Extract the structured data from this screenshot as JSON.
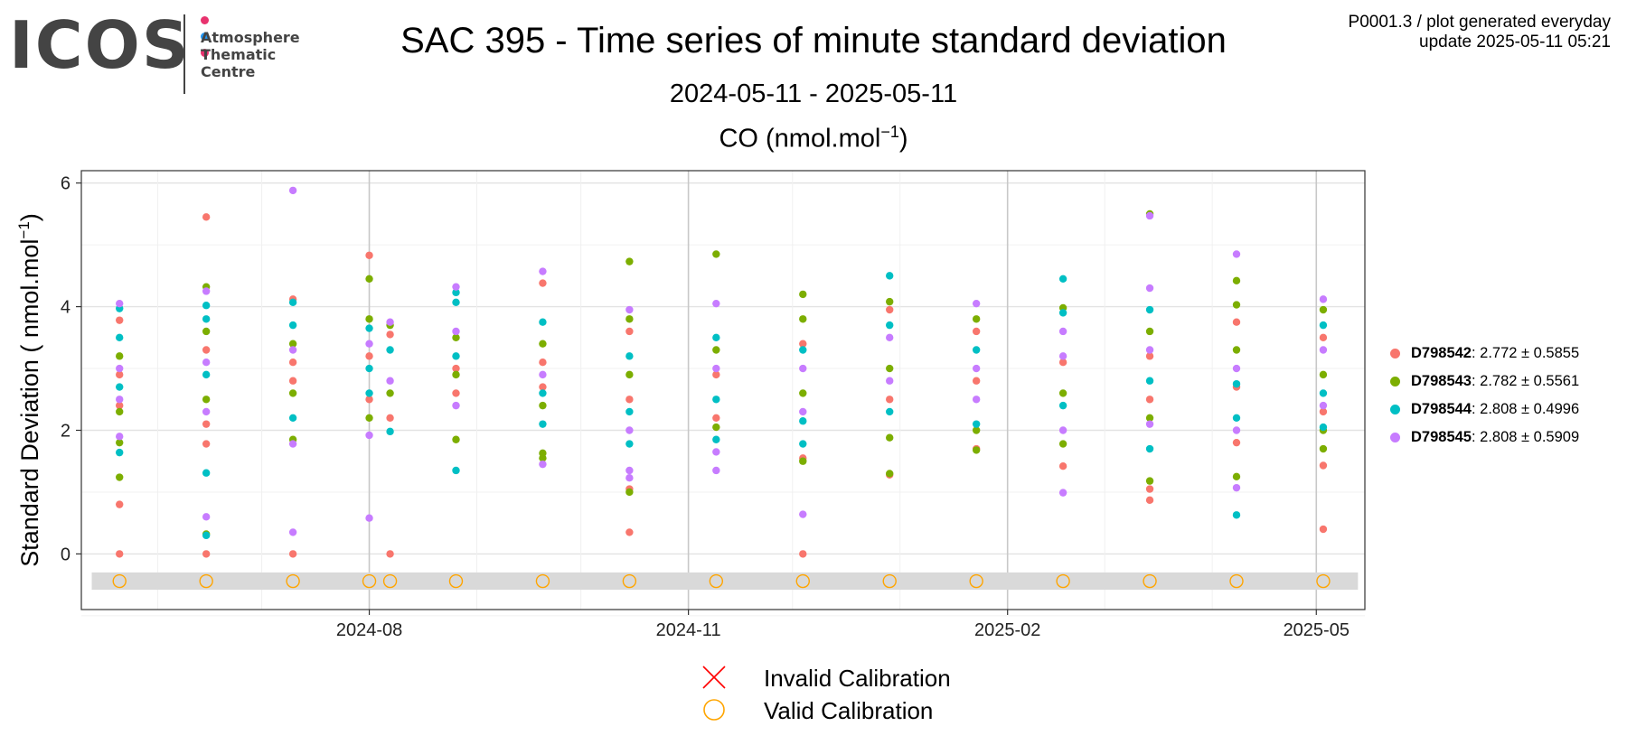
{
  "header": {
    "logo": {
      "word": "ICOS",
      "line1": "Atmosphere",
      "line2": "Thematic",
      "line3": "Centre",
      "dot_colors": [
        "#e8326e",
        "#2196f3",
        "#e8326e"
      ]
    },
    "title": "SAC 395 - Time series of minute standard deviation",
    "subtitle": "2024-05-11 - 2025-05-11",
    "panel_title_main": "CO (nmol.mol",
    "panel_title_sup": "−1",
    "panel_title_end": ")",
    "meta_line1": "P0001.3 / plot generated everyday",
    "meta_line2": "update  2025-05-11 05:21"
  },
  "legend": {
    "items": [
      {
        "name": "D798542",
        "stat": ": 2.772 ± 0.5855",
        "color": "#f8766d"
      },
      {
        "name": "D798543",
        "stat": ": 2.782 ± 0.5561",
        "color": "#7cae00"
      },
      {
        "name": "D798544",
        "stat": ": 2.808 ± 0.4996",
        "color": "#00bfc4"
      },
      {
        "name": "D798545",
        "stat": ": 2.808 ± 0.5909",
        "color": "#c77cff"
      }
    ]
  },
  "calibration_legend": {
    "invalid_label": "Invalid Calibration",
    "valid_label": "Valid Calibration",
    "invalid_color": "#ff0000",
    "valid_color": "#ffa500"
  },
  "chart_data": {
    "type": "scatter",
    "title": "CO (nmol.mol⁻¹)",
    "ylabel_main": "Standard Deviation ( nmol.mol",
    "ylabel_sup": "−1",
    "ylabel_end": ")",
    "xlabel": "",
    "x_axis": "date",
    "xlim": [
      "2024-05-10",
      "2025-05-15"
    ],
    "ylim": [
      -0.9,
      6.2
    ],
    "yticks": [
      0,
      2,
      4,
      6
    ],
    "xticks": [
      {
        "date": "2024-08-01",
        "label": "2024-08"
      },
      {
        "date": "2024-11-01",
        "label": "2024-11"
      },
      {
        "date": "2025-02-01",
        "label": "2025-02"
      },
      {
        "date": "2025-05-01",
        "label": "2025-05"
      }
    ],
    "grid": true,
    "legend_position": "right",
    "calibration_band": [
      -0.58,
      -0.3
    ],
    "valid_calibrations": [
      "2024-05-21",
      "2024-06-15",
      "2024-07-10",
      "2024-08-01",
      "2024-08-07",
      "2024-08-26",
      "2024-09-20",
      "2024-10-15",
      "2024-11-09",
      "2024-12-04",
      "2024-12-29",
      "2025-01-23",
      "2025-02-17",
      "2025-03-14",
      "2025-04-08",
      "2025-05-03"
    ],
    "invalid_calibrations": [],
    "series": [
      {
        "name": "D798542",
        "color": "#f8766d",
        "points": [
          [
            "2024-05-21",
            0.0
          ],
          [
            "2024-05-21",
            0.8
          ],
          [
            "2024-05-21",
            3.78
          ],
          [
            "2024-05-21",
            2.4
          ],
          [
            "2024-05-21",
            2.9
          ],
          [
            "2024-06-15",
            0.0
          ],
          [
            "2024-06-15",
            1.78
          ],
          [
            "2024-06-15",
            5.45
          ],
          [
            "2024-06-15",
            2.1
          ],
          [
            "2024-06-15",
            3.3
          ],
          [
            "2024-07-10",
            0.0
          ],
          [
            "2024-07-10",
            4.12
          ],
          [
            "2024-07-10",
            2.8
          ],
          [
            "2024-07-10",
            3.1
          ],
          [
            "2024-08-01",
            4.83
          ],
          [
            "2024-08-01",
            2.5
          ],
          [
            "2024-08-01",
            3.2
          ],
          [
            "2024-08-07",
            0.0
          ],
          [
            "2024-08-07",
            3.55
          ],
          [
            "2024-08-07",
            2.2
          ],
          [
            "2024-08-26",
            2.6
          ],
          [
            "2024-08-26",
            3.0
          ],
          [
            "2024-09-20",
            4.38
          ],
          [
            "2024-09-20",
            3.1
          ],
          [
            "2024-09-20",
            2.7
          ],
          [
            "2024-10-15",
            0.35
          ],
          [
            "2024-10-15",
            1.05
          ],
          [
            "2024-10-15",
            3.6
          ],
          [
            "2024-10-15",
            2.5
          ],
          [
            "2024-11-09",
            2.9
          ],
          [
            "2024-11-09",
            2.2
          ],
          [
            "2024-12-04",
            0.0
          ],
          [
            "2024-12-04",
            1.55
          ],
          [
            "2024-12-04",
            3.4
          ],
          [
            "2024-12-29",
            1.28
          ],
          [
            "2024-12-29",
            3.95
          ],
          [
            "2024-12-29",
            2.5
          ],
          [
            "2025-01-23",
            1.7
          ],
          [
            "2025-01-23",
            3.6
          ],
          [
            "2025-01-23",
            2.8
          ],
          [
            "2025-02-17",
            1.42
          ],
          [
            "2025-02-17",
            3.1
          ],
          [
            "2025-03-14",
            0.87
          ],
          [
            "2025-03-14",
            1.05
          ],
          [
            "2025-03-14",
            3.2
          ],
          [
            "2025-03-14",
            2.5
          ],
          [
            "2025-04-08",
            1.8
          ],
          [
            "2025-04-08",
            3.75
          ],
          [
            "2025-04-08",
            2.7
          ],
          [
            "2025-05-03",
            0.4
          ],
          [
            "2025-05-03",
            1.43
          ],
          [
            "2025-05-03",
            3.5
          ],
          [
            "2025-05-03",
            2.3
          ]
        ]
      },
      {
        "name": "D798543",
        "color": "#7cae00",
        "points": [
          [
            "2024-05-21",
            1.24
          ],
          [
            "2024-05-21",
            1.8
          ],
          [
            "2024-05-21",
            2.3
          ],
          [
            "2024-05-21",
            3.2
          ],
          [
            "2024-06-15",
            0.32
          ],
          [
            "2024-06-15",
            4.32
          ],
          [
            "2024-06-15",
            2.5
          ],
          [
            "2024-06-15",
            3.6
          ],
          [
            "2024-07-10",
            1.85
          ],
          [
            "2024-07-10",
            2.6
          ],
          [
            "2024-07-10",
            3.4
          ],
          [
            "2024-08-01",
            4.45
          ],
          [
            "2024-08-01",
            3.8
          ],
          [
            "2024-08-01",
            2.2
          ],
          [
            "2024-08-07",
            3.7
          ],
          [
            "2024-08-07",
            2.6
          ],
          [
            "2024-08-26",
            1.85
          ],
          [
            "2024-08-26",
            3.5
          ],
          [
            "2024-08-26",
            2.9
          ],
          [
            "2024-09-20",
            1.55
          ],
          [
            "2024-09-20",
            1.63
          ],
          [
            "2024-09-20",
            3.4
          ],
          [
            "2024-09-20",
            2.4
          ],
          [
            "2024-10-15",
            1.0
          ],
          [
            "2024-10-15",
            4.73
          ],
          [
            "2024-10-15",
            3.8
          ],
          [
            "2024-10-15",
            2.9
          ],
          [
            "2024-11-09",
            4.85
          ],
          [
            "2024-11-09",
            2.05
          ],
          [
            "2024-11-09",
            3.3
          ],
          [
            "2024-12-04",
            1.5
          ],
          [
            "2024-12-04",
            4.2
          ],
          [
            "2024-12-04",
            3.8
          ],
          [
            "2024-12-04",
            2.6
          ],
          [
            "2024-12-29",
            1.3
          ],
          [
            "2024-12-29",
            1.88
          ],
          [
            "2024-12-29",
            4.08
          ],
          [
            "2024-12-29",
            3.0
          ],
          [
            "2025-01-23",
            1.68
          ],
          [
            "2025-01-23",
            2.0
          ],
          [
            "2025-01-23",
            3.8
          ],
          [
            "2025-02-17",
            1.78
          ],
          [
            "2025-02-17",
            3.98
          ],
          [
            "2025-02-17",
            2.6
          ],
          [
            "2025-03-14",
            1.18
          ],
          [
            "2025-03-14",
            5.5
          ],
          [
            "2025-03-14",
            2.2
          ],
          [
            "2025-03-14",
            3.6
          ],
          [
            "2025-04-08",
            1.25
          ],
          [
            "2025-04-08",
            4.42
          ],
          [
            "2025-04-08",
            4.03
          ],
          [
            "2025-04-08",
            3.3
          ],
          [
            "2025-05-03",
            1.7
          ],
          [
            "2025-05-03",
            3.95
          ],
          [
            "2025-05-03",
            2.0
          ],
          [
            "2025-05-03",
            2.9
          ]
        ]
      },
      {
        "name": "D798544",
        "color": "#00bfc4",
        "points": [
          [
            "2024-05-21",
            1.64
          ],
          [
            "2024-05-21",
            3.97
          ],
          [
            "2024-05-21",
            2.7
          ],
          [
            "2024-05-21",
            3.5
          ],
          [
            "2024-06-15",
            0.3
          ],
          [
            "2024-06-15",
            1.31
          ],
          [
            "2024-06-15",
            4.02
          ],
          [
            "2024-06-15",
            3.8
          ],
          [
            "2024-06-15",
            2.9
          ],
          [
            "2024-07-10",
            4.07
          ],
          [
            "2024-07-10",
            3.7
          ],
          [
            "2024-07-10",
            2.2
          ],
          [
            "2024-08-01",
            3.65
          ],
          [
            "2024-08-01",
            2.6
          ],
          [
            "2024-08-01",
            3.0
          ],
          [
            "2024-08-07",
            1.98
          ],
          [
            "2024-08-07",
            3.3
          ],
          [
            "2024-08-26",
            1.35
          ],
          [
            "2024-08-26",
            4.07
          ],
          [
            "2024-08-26",
            4.23
          ],
          [
            "2024-08-26",
            3.2
          ],
          [
            "2024-09-20",
            2.1
          ],
          [
            "2024-09-20",
            3.75
          ],
          [
            "2024-09-20",
            2.6
          ],
          [
            "2024-10-15",
            1.78
          ],
          [
            "2024-10-15",
            2.3
          ],
          [
            "2024-10-15",
            3.2
          ],
          [
            "2024-11-09",
            1.85
          ],
          [
            "2024-11-09",
            3.5
          ],
          [
            "2024-11-09",
            2.5
          ],
          [
            "2024-12-04",
            1.78
          ],
          [
            "2024-12-04",
            2.15
          ],
          [
            "2024-12-04",
            3.3
          ],
          [
            "2024-12-29",
            4.5
          ],
          [
            "2024-12-29",
            3.7
          ],
          [
            "2024-12-29",
            2.3
          ],
          [
            "2025-01-23",
            2.1
          ],
          [
            "2025-01-23",
            3.3
          ],
          [
            "2025-02-17",
            4.45
          ],
          [
            "2025-02-17",
            3.9
          ],
          [
            "2025-02-17",
            2.4
          ],
          [
            "2025-03-14",
            1.7
          ],
          [
            "2025-03-14",
            3.95
          ],
          [
            "2025-03-14",
            2.8
          ],
          [
            "2025-04-08",
            0.63
          ],
          [
            "2025-04-08",
            2.75
          ],
          [
            "2025-04-08",
            2.2
          ],
          [
            "2025-05-03",
            2.05
          ],
          [
            "2025-05-03",
            3.7
          ],
          [
            "2025-05-03",
            2.6
          ]
        ]
      },
      {
        "name": "D798545",
        "color": "#c77cff",
        "points": [
          [
            "2024-05-21",
            4.05
          ],
          [
            "2024-05-21",
            1.9
          ],
          [
            "2024-05-21",
            3.0
          ],
          [
            "2024-05-21",
            2.5
          ],
          [
            "2024-06-15",
            0.6
          ],
          [
            "2024-06-15",
            4.25
          ],
          [
            "2024-06-15",
            2.3
          ],
          [
            "2024-06-15",
            3.1
          ],
          [
            "2024-07-10",
            0.35
          ],
          [
            "2024-07-10",
            5.88
          ],
          [
            "2024-07-10",
            1.78
          ],
          [
            "2024-07-10",
            3.3
          ],
          [
            "2024-08-01",
            0.58
          ],
          [
            "2024-08-01",
            1.92
          ],
          [
            "2024-08-01",
            3.4
          ],
          [
            "2024-08-07",
            3.75
          ],
          [
            "2024-08-07",
            2.8
          ],
          [
            "2024-08-26",
            4.32
          ],
          [
            "2024-08-26",
            2.4
          ],
          [
            "2024-08-26",
            3.6
          ],
          [
            "2024-09-20",
            1.45
          ],
          [
            "2024-09-20",
            4.57
          ],
          [
            "2024-09-20",
            2.9
          ],
          [
            "2024-10-15",
            1.23
          ],
          [
            "2024-10-15",
            1.35
          ],
          [
            "2024-10-15",
            3.95
          ],
          [
            "2024-10-15",
            2.0
          ],
          [
            "2024-11-09",
            1.35
          ],
          [
            "2024-11-09",
            1.65
          ],
          [
            "2024-11-09",
            4.05
          ],
          [
            "2024-11-09",
            3.0
          ],
          [
            "2024-12-04",
            0.64
          ],
          [
            "2024-12-04",
            2.3
          ],
          [
            "2024-12-04",
            3.0
          ],
          [
            "2024-12-29",
            3.5
          ],
          [
            "2024-12-29",
            2.8
          ],
          [
            "2025-01-23",
            4.05
          ],
          [
            "2025-01-23",
            3.0
          ],
          [
            "2025-01-23",
            2.5
          ],
          [
            "2025-02-17",
            0.99
          ],
          [
            "2025-02-17",
            3.6
          ],
          [
            "2025-02-17",
            2.0
          ],
          [
            "2025-02-17",
            3.2
          ],
          [
            "2025-03-14",
            5.47
          ],
          [
            "2025-03-14",
            4.3
          ],
          [
            "2025-03-14",
            2.1
          ],
          [
            "2025-03-14",
            3.3
          ],
          [
            "2025-04-08",
            1.07
          ],
          [
            "2025-04-08",
            4.85
          ],
          [
            "2025-04-08",
            2.0
          ],
          [
            "2025-04-08",
            3.0
          ],
          [
            "2025-05-03",
            4.12
          ],
          [
            "2025-05-03",
            3.3
          ],
          [
            "2025-05-03",
            2.4
          ]
        ]
      }
    ]
  }
}
